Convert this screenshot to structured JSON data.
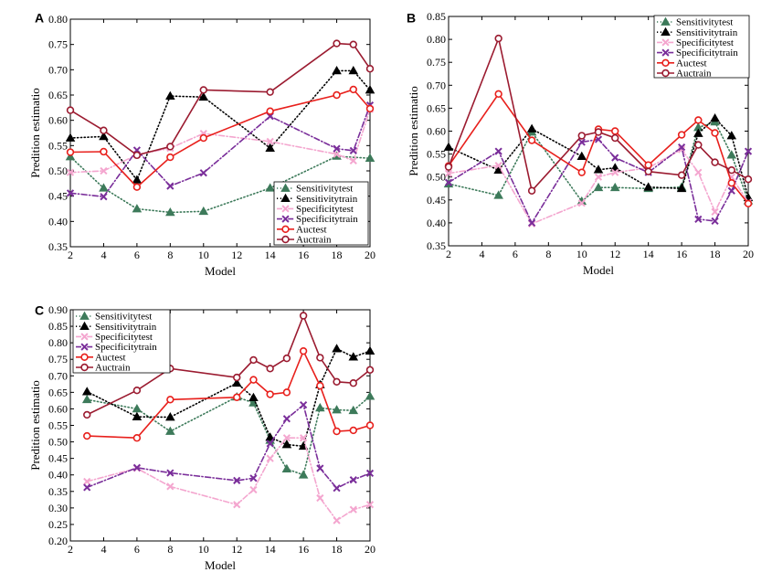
{
  "chart_data": [
    {
      "panel": "A",
      "type": "line",
      "xlabel": "Model",
      "ylabel": "Predition estimatio",
      "xlim": [
        2,
        20
      ],
      "ylim": [
        0.35,
        0.8
      ],
      "xticks": [
        2,
        4,
        6,
        8,
        10,
        12,
        14,
        16,
        18,
        20
      ],
      "yticks": [
        0.35,
        0.4,
        0.45,
        0.5,
        0.55,
        0.6,
        0.65,
        0.7,
        0.75,
        0.8
      ],
      "ytick_labels": [
        "0.35",
        "0.40",
        "0.45",
        "0.50",
        "0.55",
        "0.60",
        "0.65",
        "0.70",
        "0.75",
        "0.80"
      ],
      "legend_position": "bottom-right",
      "grid": false,
      "series": [
        {
          "name": "Sensitivitytest",
          "x": [
            2,
            4,
            6,
            8,
            10,
            14,
            18,
            20
          ],
          "values": [
            0.528,
            0.466,
            0.425,
            0.418,
            0.42,
            0.466,
            0.529,
            0.525
          ]
        },
        {
          "name": "Sensitivitytrain",
          "x": [
            2,
            4,
            6,
            8,
            10,
            14,
            18,
            19,
            20
          ],
          "values": [
            0.565,
            0.568,
            0.482,
            0.648,
            0.646,
            0.545,
            0.698,
            0.698,
            0.66
          ]
        },
        {
          "name": "Specificitytest",
          "x": [
            2,
            4,
            6,
            8,
            10,
            14,
            18,
            19,
            20
          ],
          "values": [
            0.497,
            0.5,
            0.532,
            0.545,
            0.574,
            0.558,
            0.533,
            0.52,
            0.622
          ]
        },
        {
          "name": "Specificitytrain",
          "x": [
            2,
            4,
            6,
            8,
            10,
            14,
            18,
            19,
            20
          ],
          "values": [
            0.456,
            0.449,
            0.541,
            0.47,
            0.496,
            0.608,
            0.544,
            0.54,
            0.63
          ]
        },
        {
          "name": "Auctest",
          "x": [
            2,
            4,
            6,
            8,
            10,
            14,
            18,
            19,
            20
          ],
          "values": [
            0.537,
            0.538,
            0.468,
            0.527,
            0.565,
            0.618,
            0.65,
            0.661,
            0.623
          ]
        },
        {
          "name": "Auctrain",
          "x": [
            2,
            4,
            6,
            8,
            10,
            14,
            18,
            19,
            20
          ],
          "values": [
            0.62,
            0.58,
            0.531,
            0.548,
            0.66,
            0.656,
            0.752,
            0.75,
            0.702
          ]
        }
      ]
    },
    {
      "panel": "B",
      "type": "line",
      "xlabel": "Model",
      "ylabel": "Predition estimatio",
      "xlim": [
        2,
        20
      ],
      "ylim": [
        0.35,
        0.85
      ],
      "xticks": [
        2,
        4,
        6,
        8,
        10,
        12,
        14,
        16,
        18,
        20
      ],
      "yticks": [
        0.35,
        0.4,
        0.45,
        0.5,
        0.55,
        0.6,
        0.65,
        0.7,
        0.75,
        0.8,
        0.85
      ],
      "ytick_labels": [
        "0.35",
        "0.40",
        "0.45",
        "0.50",
        "0.55",
        "0.60",
        "0.65",
        "0.70",
        "0.75",
        "0.80",
        "0.85"
      ],
      "legend_position": "top-right",
      "grid": false,
      "series": [
        {
          "name": "Sensitivitytest",
          "x": [
            2,
            5,
            7,
            10,
            11,
            12,
            14,
            16,
            17,
            18,
            19,
            20
          ],
          "values": [
            0.485,
            0.46,
            0.598,
            0.447,
            0.477,
            0.477,
            0.475,
            0.478,
            0.608,
            0.62,
            0.548,
            0.448
          ]
        },
        {
          "name": "Sensitivitytrain",
          "x": [
            2,
            5,
            7,
            10,
            11,
            12,
            14,
            16,
            17,
            18,
            19,
            20
          ],
          "values": [
            0.565,
            0.515,
            0.605,
            0.545,
            0.516,
            0.52,
            0.478,
            0.475,
            0.595,
            0.628,
            0.59,
            0.455
          ]
        },
        {
          "name": "Specificitytest",
          "x": [
            2,
            5,
            7,
            10,
            11,
            12,
            14,
            16,
            17,
            18,
            19,
            20
          ],
          "values": [
            0.508,
            0.525,
            0.398,
            0.443,
            0.5,
            0.51,
            0.52,
            0.56,
            0.51,
            0.424,
            0.5,
            0.445
          ]
        },
        {
          "name": "Specificitytrain",
          "x": [
            2,
            5,
            7,
            10,
            11,
            12,
            14,
            16,
            17,
            18,
            19,
            20
          ],
          "values": [
            0.488,
            0.556,
            0.4,
            0.576,
            0.582,
            0.542,
            0.51,
            0.565,
            0.408,
            0.404,
            0.47,
            0.556
          ]
        },
        {
          "name": "Auctest",
          "x": [
            2,
            5,
            7,
            10,
            11,
            12,
            14,
            16,
            17,
            18,
            19,
            20
          ],
          "values": [
            0.524,
            0.681,
            0.58,
            0.51,
            0.604,
            0.6,
            0.526,
            0.592,
            0.624,
            0.596,
            0.487,
            0.442
          ]
        },
        {
          "name": "Auctrain",
          "x": [
            2,
            5,
            7,
            10,
            11,
            12,
            14,
            16,
            17,
            18,
            19,
            20
          ],
          "values": [
            0.522,
            0.802,
            0.47,
            0.59,
            0.598,
            0.585,
            0.512,
            0.504,
            0.57,
            0.532,
            0.515,
            0.495
          ]
        }
      ]
    },
    {
      "panel": "C",
      "type": "line",
      "xlabel": "Model",
      "ylabel": "Predition estimatio",
      "xlim": [
        2,
        20
      ],
      "ylim": [
        0.2,
        0.9
      ],
      "xticks": [
        2,
        4,
        6,
        8,
        10,
        12,
        14,
        16,
        18,
        20
      ],
      "yticks": [
        0.2,
        0.25,
        0.3,
        0.35,
        0.4,
        0.45,
        0.5,
        0.55,
        0.6,
        0.65,
        0.7,
        0.75,
        0.8,
        0.85,
        0.9
      ],
      "ytick_labels": [
        "0.20",
        "0.25",
        "0.30",
        "0.35",
        "0.40",
        "0.45",
        "0.50",
        "0.55",
        "0.60",
        "0.65",
        "0.70",
        "0.75",
        "0.80",
        "0.85",
        "0.90"
      ],
      "legend_position": "top-left",
      "grid": false,
      "series": [
        {
          "name": "Sensitivitytest",
          "x": [
            3,
            6,
            8,
            12,
            13,
            14,
            15,
            16,
            17,
            18,
            19,
            20
          ],
          "values": [
            0.628,
            0.6,
            0.532,
            0.636,
            0.618,
            0.505,
            0.418,
            0.4,
            0.603,
            0.597,
            0.595,
            0.638
          ]
        },
        {
          "name": "Sensitivitytrain",
          "x": [
            3,
            6,
            8,
            12,
            13,
            14,
            15,
            16,
            17,
            18,
            19,
            20
          ],
          "values": [
            0.652,
            0.576,
            0.575,
            0.678,
            0.634,
            0.514,
            0.492,
            0.487,
            0.673,
            0.782,
            0.757,
            0.775
          ]
        },
        {
          "name": "Specificitytest",
          "x": [
            3,
            6,
            8,
            12,
            13,
            14,
            15,
            16,
            17,
            18,
            19,
            20
          ],
          "values": [
            0.38,
            0.42,
            0.365,
            0.31,
            0.355,
            0.45,
            0.512,
            0.512,
            0.33,
            0.262,
            0.295,
            0.31
          ]
        },
        {
          "name": "Specificitytrain",
          "x": [
            3,
            6,
            8,
            12,
            13,
            14,
            15,
            16,
            17,
            18,
            19,
            20
          ],
          "values": [
            0.362,
            0.422,
            0.406,
            0.383,
            0.39,
            0.495,
            0.57,
            0.612,
            0.42,
            0.36,
            0.385,
            0.405
          ]
        },
        {
          "name": "Auctest",
          "x": [
            3,
            6,
            8,
            12,
            13,
            14,
            15,
            16,
            17,
            18,
            19,
            20
          ],
          "values": [
            0.518,
            0.512,
            0.628,
            0.635,
            0.688,
            0.644,
            0.65,
            0.775,
            0.67,
            0.532,
            0.535,
            0.55
          ]
        },
        {
          "name": "Auctrain",
          "x": [
            3,
            6,
            8,
            12,
            13,
            14,
            15,
            16,
            17,
            18,
            19,
            20
          ],
          "values": [
            0.582,
            0.656,
            0.722,
            0.695,
            0.748,
            0.722,
            0.753,
            0.882,
            0.755,
            0.682,
            0.678,
            0.718
          ]
        }
      ]
    }
  ],
  "style": {
    "Sensitivitytest": {
      "color": "#3d7a5a",
      "marker": "triangle",
      "line": "dotted"
    },
    "Sensitivitytrain": {
      "color": "#000000",
      "marker": "triangle",
      "line": "dotted"
    },
    "Specificitytest": {
      "color": "#f4a6cf",
      "marker": "x",
      "line": "dashdot"
    },
    "Specificitytrain": {
      "color": "#7a2e9a",
      "marker": "x",
      "line": "dashdot"
    },
    "Auctest": {
      "color": "#e8201c",
      "marker": "circle",
      "line": "solid"
    },
    "Auctrain": {
      "color": "#9b1b30",
      "marker": "circle",
      "line": "solid"
    }
  }
}
